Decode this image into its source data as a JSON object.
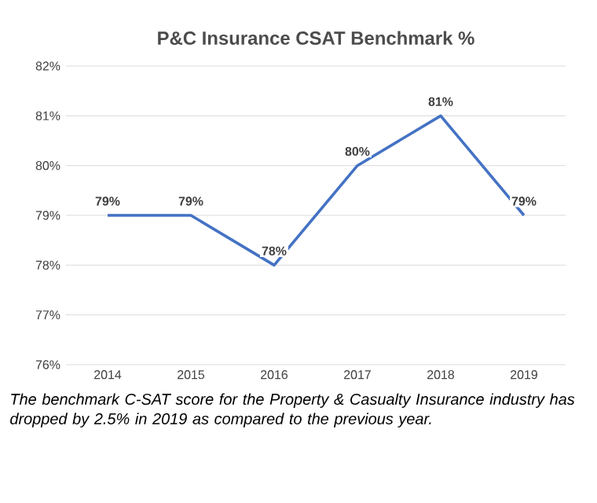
{
  "chart_data": {
    "type": "line",
    "title": "P&C Insurance CSAT Benchmark %",
    "categories": [
      "2014",
      "2015",
      "2016",
      "2017",
      "2018",
      "2019"
    ],
    "series": [
      {
        "color": "#4472c4",
        "values": [
          79,
          79,
          78,
          80,
          81,
          79
        ],
        "value_labels": [
          "79%",
          "79%",
          "78%",
          "80%",
          "81%",
          "79%"
        ]
      }
    ],
    "ylim": [
      76,
      82
    ],
    "yticks": [
      {
        "value": 76,
        "label": "76%"
      },
      {
        "value": 77,
        "label": "77%"
      },
      {
        "value": 78,
        "label": "78%"
      },
      {
        "value": 79,
        "label": "79%"
      },
      {
        "value": 80,
        "label": "80%"
      },
      {
        "value": 81,
        "label": "81%"
      },
      {
        "value": 82,
        "label": "82%"
      }
    ],
    "grid": "y",
    "marker": "none",
    "line_style": "solid",
    "annotations": [
      "The benchmark C-SAT score for the Property & Casualty Insurance industry has dropped by 2.5% in 2019 as compared to the previous year."
    ]
  }
}
